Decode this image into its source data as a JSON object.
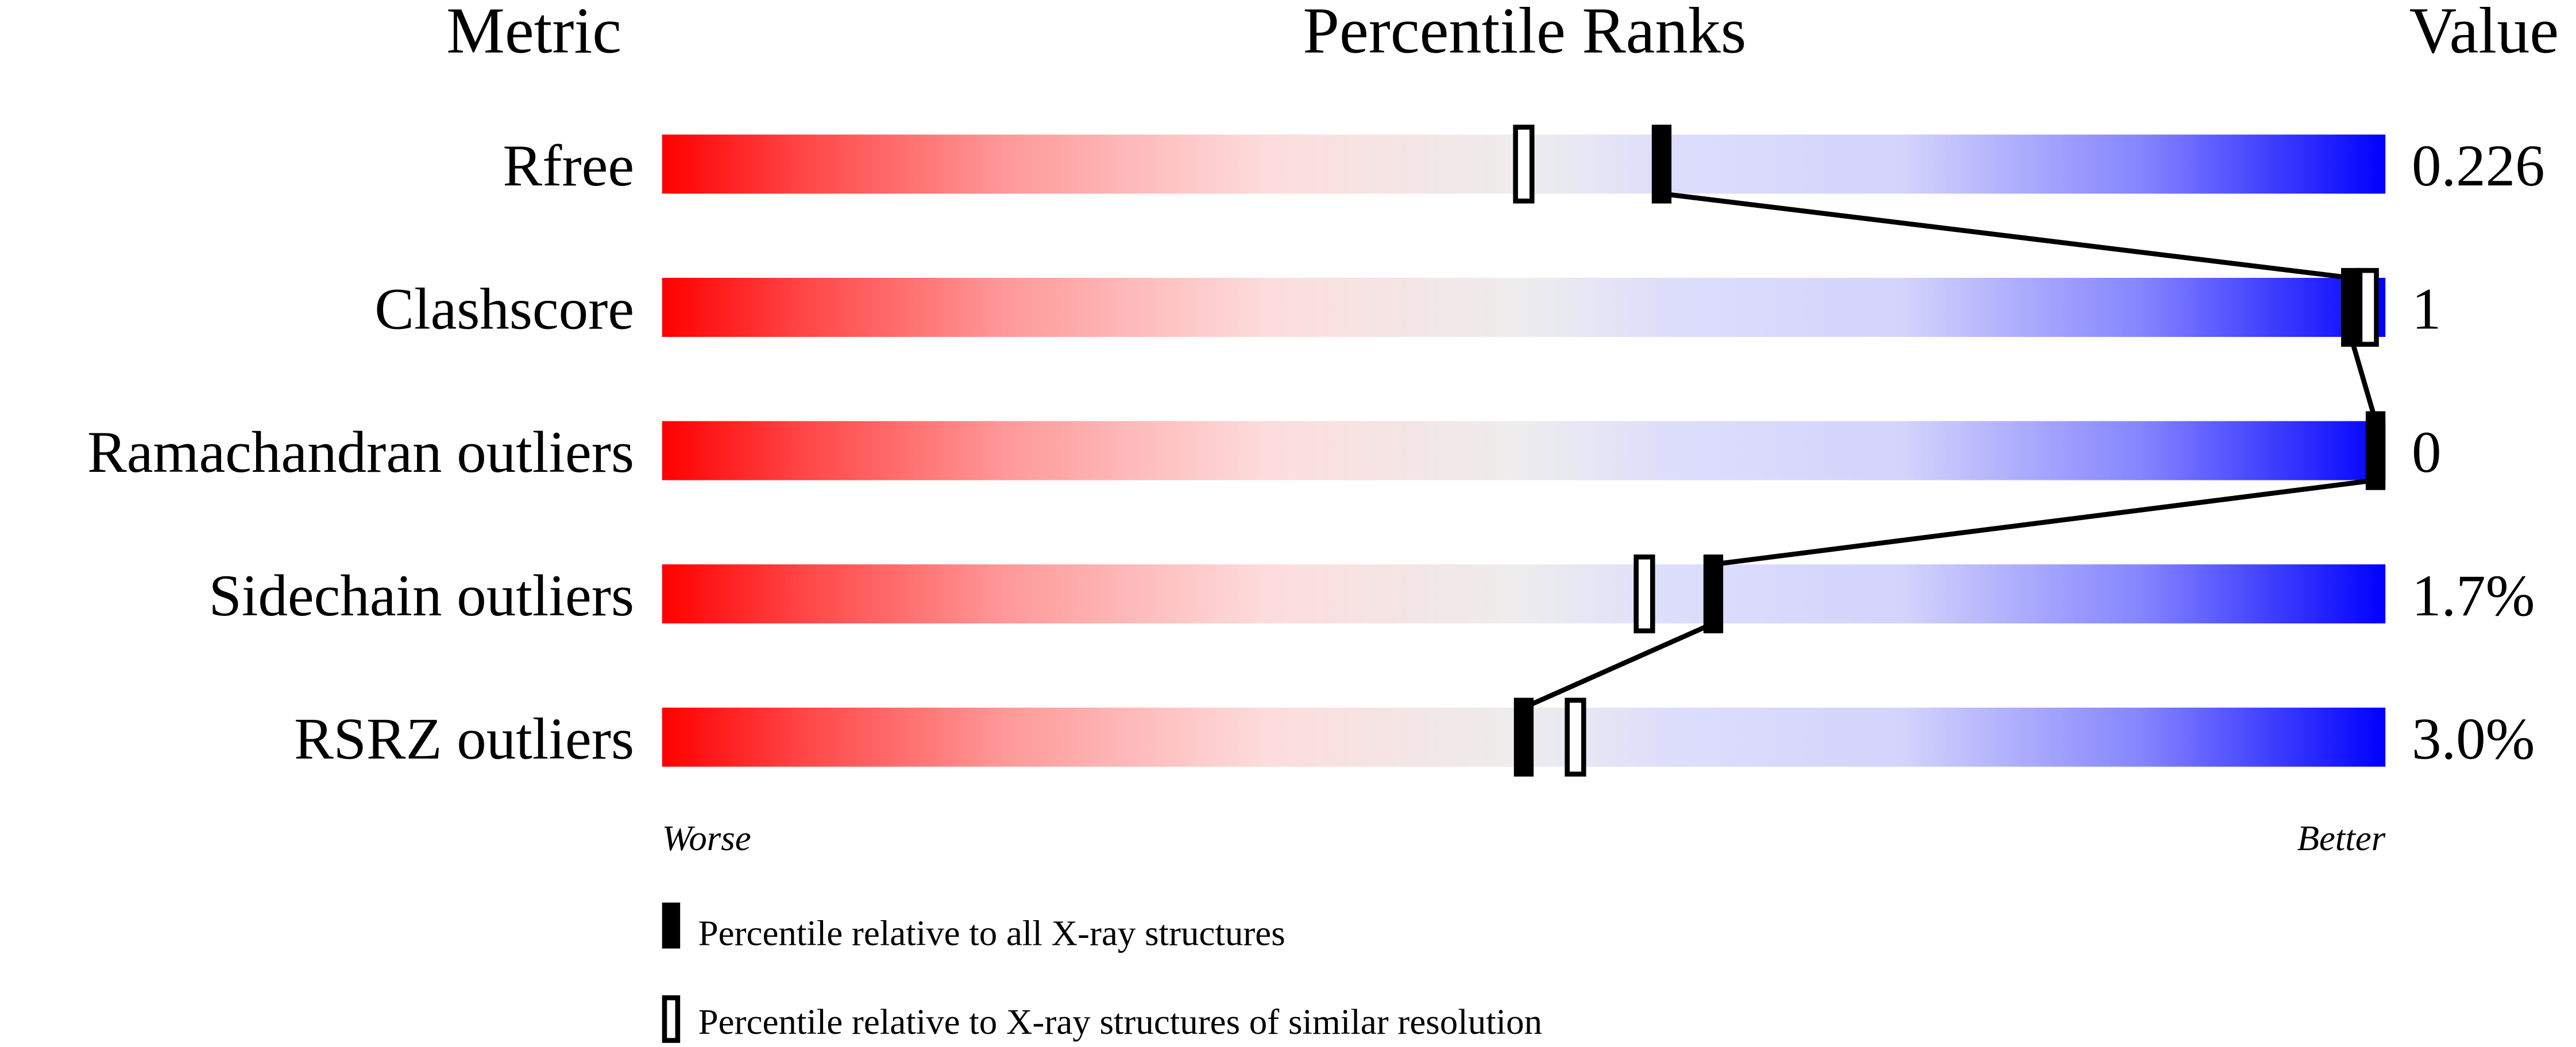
{
  "chart_data": {
    "type": "percentile-bar",
    "headers": {
      "metric": "Metric",
      "ranks": "Percentile Ranks",
      "value": "Value"
    },
    "xlim": [
      0,
      100
    ],
    "axis_labels": {
      "left": "Worse",
      "right": "Better"
    },
    "metrics": [
      {
        "name": "Rfree",
        "value": "0.226",
        "percentile_all": 58,
        "percentile_similar": 50
      },
      {
        "name": "Clashscore",
        "value": "1",
        "percentile_all": 98,
        "percentile_similar": 99
      },
      {
        "name": "Ramachandran outliers",
        "value": "0",
        "percentile_all": 100,
        "percentile_similar": null
      },
      {
        "name": "Sidechain outliers",
        "value": "1.7%",
        "percentile_all": 61,
        "percentile_similar": 57
      },
      {
        "name": "RSRZ outliers",
        "value": "3.0%",
        "percentile_all": 50,
        "percentile_similar": 53
      }
    ],
    "legend": {
      "all": "Percentile relative to all X-ray structures",
      "similar": "Percentile relative to X-ray structures of similar resolution"
    },
    "colors": {
      "worse": "#ff0000",
      "middle": "#eeeeee",
      "better": "#0000ff"
    }
  }
}
